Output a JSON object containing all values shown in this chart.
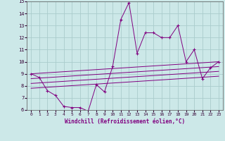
{
  "x_main": [
    0,
    1,
    2,
    3,
    4,
    5,
    6,
    7,
    8,
    9,
    10,
    11,
    12,
    13,
    14,
    15,
    16,
    17,
    18,
    19,
    20,
    21,
    22,
    23
  ],
  "y_main": [
    9.0,
    8.7,
    7.6,
    7.2,
    6.3,
    6.2,
    6.2,
    5.9,
    8.1,
    7.5,
    9.6,
    13.5,
    14.9,
    10.7,
    12.4,
    12.4,
    12.0,
    12.0,
    13.0,
    10.0,
    11.0,
    8.6,
    9.5,
    10.0
  ],
  "line_color": "#800080",
  "bg_color": "#cce8e8",
  "grid_color": "#aacccc",
  "xlabel": "Windchill (Refroidissement éolien,°C)",
  "ylim": [
    6,
    15
  ],
  "xlim": [
    -0.5,
    23.5
  ],
  "yticks": [
    6,
    7,
    8,
    9,
    10,
    11,
    12,
    13,
    14,
    15
  ],
  "xticks": [
    0,
    1,
    2,
    3,
    4,
    5,
    6,
    7,
    8,
    9,
    10,
    11,
    12,
    13,
    14,
    15,
    16,
    17,
    18,
    19,
    20,
    21,
    22,
    23
  ],
  "reg_lines": [
    {
      "x0": 0,
      "y0": 9.0,
      "x1": 23,
      "y1": 10.0
    },
    {
      "x0": 0,
      "y0": 8.6,
      "x1": 23,
      "y1": 9.6
    },
    {
      "x0": 0,
      "y0": 8.2,
      "x1": 23,
      "y1": 9.2
    },
    {
      "x0": 0,
      "y0": 7.8,
      "x1": 23,
      "y1": 8.8
    }
  ]
}
